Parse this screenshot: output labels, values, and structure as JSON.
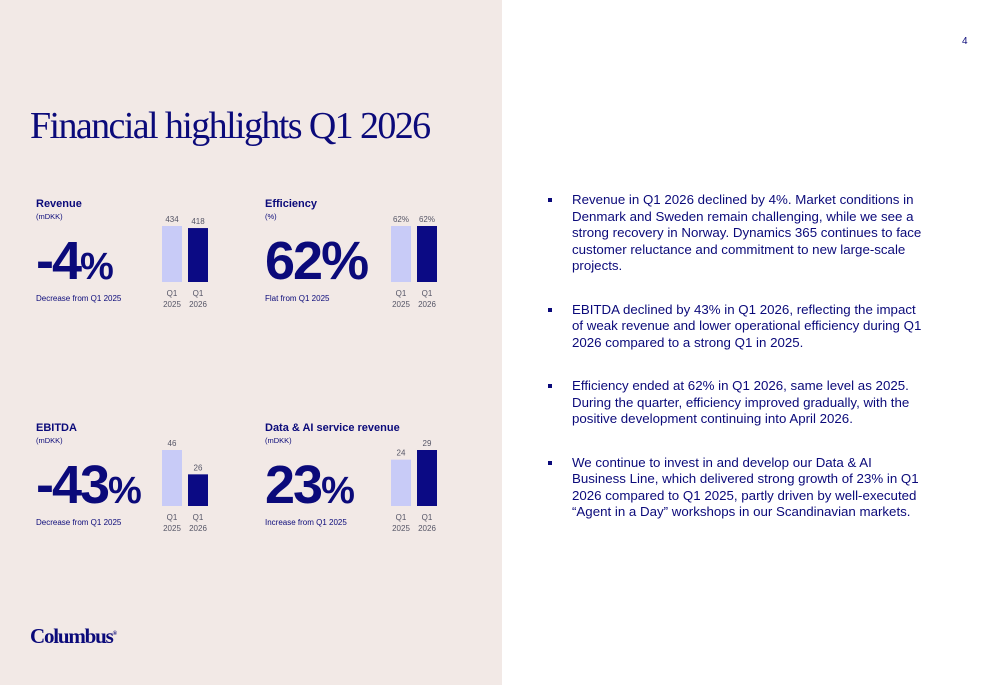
{
  "page": {
    "number": "4",
    "title": "Financial highlights Q1 2026"
  },
  "kpis": [
    {
      "label": "Revenue",
      "unit": "(mDKK)",
      "value": "-4",
      "suffix": "%",
      "note": "Decrease from Q1 2025"
    },
    {
      "label": "Efficiency",
      "unit": "(%)",
      "value": "62%",
      "suffix": "",
      "note": "Flat from Q1 2025"
    },
    {
      "label": "EBITDA",
      "unit": "(mDKK)",
      "value": "-43",
      "suffix": "%",
      "note": "Decrease from Q1 2025"
    },
    {
      "label": "Data & AI service revenue",
      "unit": "(mDKK)",
      "value": "23",
      "suffix": "%",
      "note": "Increase from Q1 2025"
    }
  ],
  "chart_data": [
    {
      "type": "bar",
      "categories": [
        "Q1 2025",
        "Q1 2026"
      ],
      "values": [
        434,
        418
      ],
      "value_labels": [
        "434",
        "418"
      ]
    },
    {
      "type": "bar",
      "categories": [
        "Q1 2025",
        "Q1 2026"
      ],
      "values": [
        62,
        62
      ],
      "value_labels": [
        "62%",
        "62%"
      ]
    },
    {
      "type": "bar",
      "categories": [
        "Q1 2025",
        "Q1 2026"
      ],
      "values": [
        46,
        26
      ],
      "value_labels": [
        "46",
        "26"
      ]
    },
    {
      "type": "bar",
      "categories": [
        "Q1 2025",
        "Q1 2026"
      ],
      "values": [
        24,
        29
      ],
      "value_labels": [
        "24",
        "29"
      ]
    }
  ],
  "bullets": [
    "Revenue in Q1 2026 declined by 4%. Market conditions in Denmark and Sweden remain challenging, while we see a strong recovery in Norway. Dynamics 365 continues to face customer reluctance and commitment to new large-scale projects.",
    "EBITDA declined by 43% in Q1 2026, reflecting the impact of weak revenue and lower operational efficiency during Q1 2026 compared to a strong Q1 in 2025.",
    "Efficiency ended at 62% in Q1 2026, same level as 2025. During the quarter, efficiency improved gradually, with the positive development continuing into April 2026.",
    "We continue to invest in and develop our Data & AI Business Line, which delivered strong growth of 23% in Q1 2026 compared to Q1 2025, partly driven by well-executed “Agent in a Day” workshops in our Scandinavian markets."
  ],
  "footer": {
    "logo_text": "Columbus",
    "logo_mark": "®"
  },
  "colors": {
    "accent": "#0b0a84",
    "previous_year_bar": "#c8cbf7",
    "panel_background": "#f2e9e6"
  }
}
